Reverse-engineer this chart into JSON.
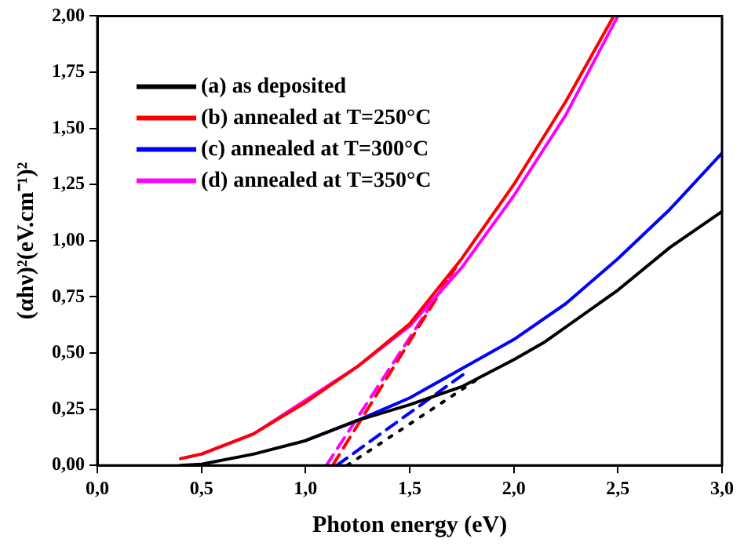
{
  "chart_data": {
    "type": "line",
    "xlabel": "Photon energy (eV)",
    "ylabel": "(αhν)²(eV.cm⁻¹)²",
    "xlim": [
      0,
      3
    ],
    "ylim": [
      0,
      2
    ],
    "xticks": [
      {
        "value": 0,
        "label": "0,0"
      },
      {
        "value": 0.5,
        "label": "0,5"
      },
      {
        "value": 1,
        "label": "1,0"
      },
      {
        "value": 1.5,
        "label": "1,5"
      },
      {
        "value": 2,
        "label": "2,0"
      },
      {
        "value": 2.5,
        "label": "2,5"
      },
      {
        "value": 3,
        "label": "3,0"
      }
    ],
    "yticks": [
      {
        "value": 0,
        "label": "0,00"
      },
      {
        "value": 0.25,
        "label": "0,25"
      },
      {
        "value": 0.5,
        "label": "0,50"
      },
      {
        "value": 0.75,
        "label": "0,75"
      },
      {
        "value": 1,
        "label": "1,00"
      },
      {
        "value": 1.25,
        "label": "1,25"
      },
      {
        "value": 1.5,
        "label": "1,50"
      },
      {
        "value": 1.75,
        "label": "1,75"
      },
      {
        "value": 2,
        "label": "2,00"
      }
    ],
    "grid": false,
    "legend": "top left",
    "marker": "none",
    "series": [
      {
        "name": "(a) as deposited",
        "color": "#000000",
        "x": [
          0.4,
          0.5,
          0.75,
          1.0,
          1.25,
          1.5,
          1.75,
          2.0,
          2.15,
          2.5,
          2.75,
          3.0
        ],
        "values": [
          0,
          0.005,
          0.05,
          0.11,
          0.2,
          0.27,
          0.35,
          0.47,
          0.55,
          0.78,
          0.97,
          1.13
        ]
      },
      {
        "name": "(b) annealed at T=250°C",
        "color": "#ff0000",
        "x": [
          0.4,
          0.5,
          0.75,
          1.0,
          1.25,
          1.5,
          1.75,
          2.0,
          2.25,
          2.48
        ],
        "values": [
          0.03,
          0.05,
          0.14,
          0.28,
          0.44,
          0.63,
          0.92,
          1.25,
          1.62,
          2.0
        ]
      },
      {
        "name": "(c) annealed at T=300°C",
        "color": "#0000ff",
        "x": [
          1.0,
          1.25,
          1.5,
          1.75,
          2.0,
          2.25,
          2.5,
          2.75,
          3.0
        ],
        "values": [
          0.11,
          0.2,
          0.3,
          0.43,
          0.56,
          0.72,
          0.92,
          1.14,
          1.39
        ]
      },
      {
        "name": "(d) annealed at T=350°C",
        "color": "#ff00ff",
        "x": [
          0.4,
          0.5,
          0.75,
          1.0,
          1.25,
          1.5,
          1.75,
          2.0,
          2.25,
          2.5
        ],
        "values": [
          0.03,
          0.05,
          0.14,
          0.29,
          0.44,
          0.62,
          0.88,
          1.2,
          1.56,
          2.0
        ]
      },
      {
        "color": "#ff0000",
        "line_style": "dashed",
        "x": [
          1.13,
          1.72
        ],
        "values": [
          0,
          0.88
        ]
      },
      {
        "color": "#ff00ff",
        "line_style": "dashed",
        "x": [
          1.1,
          1.72
        ],
        "values": [
          0,
          0.88
        ]
      },
      {
        "color": "#0000ff",
        "line_style": "dashed",
        "x": [
          1.15,
          1.78
        ],
        "values": [
          0,
          0.42
        ]
      },
      {
        "color": "#000000",
        "line_style": "dotted",
        "x": [
          1.2,
          1.82
        ],
        "values": [
          0,
          0.38
        ]
      }
    ]
  }
}
